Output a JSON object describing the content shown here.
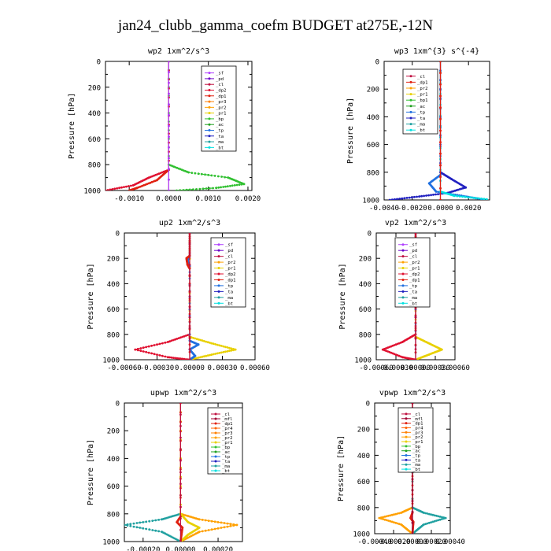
{
  "figure_title": "jan24_clubb_gamma_coefm  BUDGET at275E,-12N",
  "series_colors": {
    "_sf": "#b040ff",
    "_pd": "#6a00c8",
    "_cl": "#c01040",
    "_dp2": "#e01030",
    "_dp1": "#e02010",
    "_pr3": "#ff8000",
    "_pr2": "#ffa000",
    "_pr1": "#e8d000",
    "_pr4": "#ff6000",
    "_mfl": "#a00030",
    "_bp": "#30c030",
    "_bp1": "#30c030",
    "_ac": "#20a020",
    "_tp": "#2070e0",
    "_ta": "#2020c0",
    "_ma": "#20a0a0",
    "_bt": "#00e0e0"
  },
  "chart_data": [
    {
      "type": "line",
      "title": "wp2  1xm^2/s^3",
      "ylabel": "Pressure [hPa]",
      "xlim": [
        -0.0016,
        0.0021
      ],
      "ylim": [
        1000,
        0
      ],
      "xticks": [
        -0.001,
        0.0,
        0.001,
        0.002
      ],
      "xtick_labels": [
        "-0.0010",
        "0.0000",
        "0.0010",
        "0.0020"
      ],
      "yticks": [
        0,
        200,
        400,
        600,
        800,
        1000
      ],
      "legend": [
        "_sf",
        "_pd",
        "_cl",
        "_dp2",
        "_dp1",
        "_pr3",
        "_pr2",
        "_pr1",
        "_bp",
        "_ac",
        "_tp",
        "_ta",
        "_ma",
        "_bt"
      ],
      "series": [
        {
          "name": "_bp",
          "values": [
            [
              0,
              0
            ],
            [
              0,
              800
            ],
            [
              0.0005,
              860
            ],
            [
              0.0015,
              900
            ],
            [
              0.0019,
              950
            ],
            [
              0.0012,
              980
            ],
            [
              0.0002,
              1000
            ]
          ]
        },
        {
          "name": "_dp2",
          "values": [
            [
              0,
              0
            ],
            [
              0,
              840
            ],
            [
              -0.0005,
              900
            ],
            [
              -0.0009,
              960
            ],
            [
              -0.0016,
              1000
            ]
          ]
        },
        {
          "name": "_dp1",
          "values": [
            [
              0,
              0
            ],
            [
              0,
              840
            ],
            [
              -0.0003,
              920
            ],
            [
              -0.0008,
              980
            ],
            [
              -0.001,
              1000
            ]
          ]
        },
        {
          "name": "_cl",
          "values": [
            [
              0,
              0
            ],
            [
              0,
              1000
            ]
          ]
        },
        {
          "name": "_sf",
          "values": [
            [
              0,
              0
            ],
            [
              0,
              1000
            ]
          ]
        }
      ]
    },
    {
      "type": "line",
      "title": "wp3  1xm^{3} s^{-4}",
      "ylabel": "Pressure [hPa]",
      "xlim": [
        -0.004,
        0.0035
      ],
      "ylim": [
        1000,
        0
      ],
      "xticks": [
        -0.004,
        -0.002,
        0.0,
        0.002
      ],
      "xtick_labels": [
        "-0.0040",
        "-0.0020",
        "0.0000",
        "0.0020"
      ],
      "yticks": [
        0,
        200,
        400,
        600,
        800,
        1000
      ],
      "legend": [
        "_cl",
        "_dp1",
        "_pr2",
        "_pr1",
        "_bp1",
        "_ac",
        "_tp",
        "_ta",
        "_ma",
        "_bt"
      ],
      "series": [
        {
          "name": "_ta",
          "values": [
            [
              0,
              0
            ],
            [
              0,
              800
            ],
            [
              0.0008,
              850
            ],
            [
              0.0018,
              910
            ],
            [
              0.0005,
              950
            ],
            [
              -0.0015,
              975
            ],
            [
              -0.0036,
              1000
            ]
          ]
        },
        {
          "name": "_tp",
          "values": [
            [
              0,
              0
            ],
            [
              0,
              820
            ],
            [
              -0.0008,
              880
            ],
            [
              -0.0003,
              940
            ],
            [
              0.0015,
              970
            ],
            [
              0.003,
              995
            ]
          ]
        },
        {
          "name": "_bt",
          "values": [
            [
              0,
              0
            ],
            [
              0,
              940
            ],
            [
              0.001,
              970
            ],
            [
              0.0033,
              995
            ]
          ]
        },
        {
          "name": "_cl",
          "values": [
            [
              0,
              0
            ],
            [
              0,
              1000
            ]
          ]
        },
        {
          "name": "_dp1",
          "values": [
            [
              0,
              0
            ],
            [
              0,
              1000
            ]
          ]
        }
      ]
    },
    {
      "type": "line",
      "title": "up2  1xm^2/s^3",
      "ylabel": "Pressure [hPa]",
      "xlim": [
        -0.0006,
        0.0006
      ],
      "ylim": [
        1000,
        0
      ],
      "xticks": [
        -0.0006,
        -0.0003,
        0.0,
        0.0003,
        0.0006
      ],
      "xtick_labels": [
        "-0.00060",
        "-0.00030",
        "0.00000",
        "0.00030",
        "0.00060"
      ],
      "yticks": [
        0,
        200,
        400,
        600,
        800,
        1000
      ],
      "legend": [
        "_sf",
        "_pd",
        "_cl",
        "_pr2",
        "_pr1",
        "_dp2",
        "_dp1",
        "_tp",
        "_ta",
        "_ma",
        "_bt"
      ],
      "series": [
        {
          "name": "_dp2",
          "values": [
            [
              0,
              0
            ],
            [
              0,
              800
            ],
            [
              -0.0002,
              860
            ],
            [
              -0.0005,
              920
            ],
            [
              -0.0002,
              980
            ],
            [
              0,
              1000
            ]
          ]
        },
        {
          "name": "_pr1",
          "values": [
            [
              0,
              0
            ],
            [
              0,
              820
            ],
            [
              0.0002,
              870
            ],
            [
              0.00042,
              920
            ],
            [
              0.0002,
              960
            ],
            [
              0,
              1000
            ]
          ]
        },
        {
          "name": "_tp",
          "values": [
            [
              0,
              0
            ],
            [
              0,
              180
            ],
            [
              -2e-05,
              220
            ],
            [
              0,
              260
            ],
            [
              0,
              850
            ],
            [
              8e-05,
              880
            ],
            [
              0,
              920
            ],
            [
              5e-05,
              970
            ],
            [
              0,
              1000
            ]
          ]
        },
        {
          "name": "_dp1",
          "values": [
            [
              0,
              0
            ],
            [
              0,
              180
            ],
            [
              -3e-05,
              200
            ],
            [
              -2e-05,
              250
            ],
            [
              0,
              280
            ],
            [
              0,
              1000
            ]
          ]
        },
        {
          "name": "_cl",
          "values": [
            [
              0,
              0
            ],
            [
              0,
              1000
            ]
          ]
        }
      ]
    },
    {
      "type": "line",
      "title": "vp2  1xm^2/s^3",
      "ylabel": "Pressure [hPa]",
      "xlim": [
        -0.0006,
        0.0006
      ],
      "ylim": [
        1000,
        0
      ],
      "xticks": [
        -0.0006,
        -0.0003,
        0.0,
        0.0003,
        0.0006
      ],
      "xtick_labels": [
        "-0.00060",
        "-0.00030",
        "0.00000",
        "0.00030",
        "0.00060"
      ],
      "yticks": [
        0,
        200,
        400,
        600,
        800,
        1000
      ],
      "legend": [
        "_sf",
        "_pd",
        "_cl",
        "_pr2",
        "_pr1",
        "_dp2",
        "_dp1",
        "_tp",
        "_ta",
        "_ma",
        "_bt"
      ],
      "series": [
        {
          "name": "_dp2",
          "values": [
            [
              0,
              0
            ],
            [
              0,
              800
            ],
            [
              -0.0002,
              860
            ],
            [
              -0.0005,
              920
            ],
            [
              -0.0002,
              980
            ],
            [
              0,
              1000
            ]
          ]
        },
        {
          "name": "_pr1",
          "values": [
            [
              0,
              0
            ],
            [
              0,
              820
            ],
            [
              0.0002,
              870
            ],
            [
              0.0004,
              920
            ],
            [
              0.0002,
              960
            ],
            [
              0,
              1000
            ]
          ]
        },
        {
          "name": "_tp",
          "values": [
            [
              0,
              0
            ],
            [
              0,
              160
            ],
            [
              8e-05,
              220
            ],
            [
              3e-05,
              280
            ],
            [
              0,
              320
            ],
            [
              0,
              1000
            ]
          ]
        },
        {
          "name": "_dp1",
          "values": [
            [
              0,
              0
            ],
            [
              0,
              180
            ],
            [
              -6e-05,
              220
            ],
            [
              -3e-05,
              270
            ],
            [
              0,
              300
            ],
            [
              0,
              1000
            ]
          ]
        },
        {
          "name": "_cl",
          "values": [
            [
              0,
              0
            ],
            [
              0,
              1000
            ]
          ]
        }
      ]
    },
    {
      "type": "line",
      "title": "upwp  1xm^2/s^3",
      "ylabel": "Pressure [hPa]",
      "xlim": [
        -0.0003,
        0.00033
      ],
      "ylim": [
        1000,
        0
      ],
      "xticks": [
        -0.0002,
        0.0,
        0.0002
      ],
      "xtick_labels": [
        "-0.00020",
        "0.00000",
        "0.00020"
      ],
      "yticks": [
        0,
        200,
        400,
        600,
        800,
        1000
      ],
      "legend": [
        "_cl",
        "_mfl",
        "_dp1",
        "_pr4",
        "_pr3",
        "_pr2",
        "_pr1",
        "_bp",
        "_ac",
        "_tp",
        "_ta",
        "_ma",
        "_bt"
      ],
      "series": [
        {
          "name": "_ma",
          "values": [
            [
              0,
              0
            ],
            [
              0,
              800
            ],
            [
              -0.0001,
              840
            ],
            [
              -0.0003,
              880
            ],
            [
              -0.0001,
              930
            ],
            [
              0,
              1000
            ]
          ]
        },
        {
          "name": "_pr2",
          "values": [
            [
              0,
              0
            ],
            [
              0,
              800
            ],
            [
              0.0001,
              840
            ],
            [
              0.0003,
              880
            ],
            [
              0.0001,
              930
            ],
            [
              0,
              1000
            ]
          ]
        },
        {
          "name": "_pr1",
          "values": [
            [
              0,
              0
            ],
            [
              0,
              800
            ],
            [
              4e-05,
              860
            ],
            [
              0.0001,
              900
            ],
            [
              4e-05,
              950
            ],
            [
              0,
              1000
            ]
          ]
        },
        {
          "name": "_dp1",
          "values": [
            [
              0,
              0
            ],
            [
              0,
              820
            ],
            [
              -2e-05,
              860
            ],
            [
              1e-05,
              900
            ],
            [
              0,
              1000
            ]
          ]
        },
        {
          "name": "_cl",
          "values": [
            [
              0,
              0
            ],
            [
              0,
              1000
            ]
          ]
        }
      ]
    },
    {
      "type": "line",
      "title": "vpwp  1xm^2/s^3",
      "ylabel": "Pressure [hPa]",
      "xlim": [
        -0.0004,
        0.0004
      ],
      "ylim": [
        1000,
        0
      ],
      "xticks": [
        -0.0004,
        -0.0002,
        0.0,
        0.0002,
        0.0004
      ],
      "xtick_labels": [
        "-0.00040",
        "-0.00020",
        "0.00000",
        "0.00020",
        "0.00040"
      ],
      "yticks": [
        0,
        200,
        400,
        600,
        800,
        1000
      ],
      "legend": [
        "_cl",
        "_mfl",
        "_dp1",
        "_pr4",
        "_pr3",
        "_pr2",
        "_pr1",
        "_bp",
        "_ac",
        "_tp",
        "_ta",
        "_ma",
        "_bt"
      ],
      "series": [
        {
          "name": "_pr2",
          "values": [
            [
              0,
              0
            ],
            [
              0,
              800
            ],
            [
              -0.00012,
              840
            ],
            [
              -0.00035,
              880
            ],
            [
              -0.00012,
              930
            ],
            [
              0,
              1000
            ]
          ]
        },
        {
          "name": "_ma",
          "values": [
            [
              0,
              0
            ],
            [
              0,
              800
            ],
            [
              0.00012,
              840
            ],
            [
              0.00035,
              880
            ],
            [
              0.00012,
              930
            ],
            [
              0,
              1000
            ]
          ]
        },
        {
          "name": "_dp1",
          "values": [
            [
              0,
              0
            ],
            [
              0,
              840
            ],
            [
              -2e-05,
              880
            ],
            [
              1e-05,
              910
            ],
            [
              0,
              1000
            ]
          ]
        },
        {
          "name": "_cl",
          "values": [
            [
              0,
              0
            ],
            [
              0,
              1000
            ]
          ]
        },
        {
          "name": "_mfl",
          "values": [
            [
              0,
              0
            ],
            [
              0,
              1000
            ]
          ]
        }
      ]
    }
  ]
}
